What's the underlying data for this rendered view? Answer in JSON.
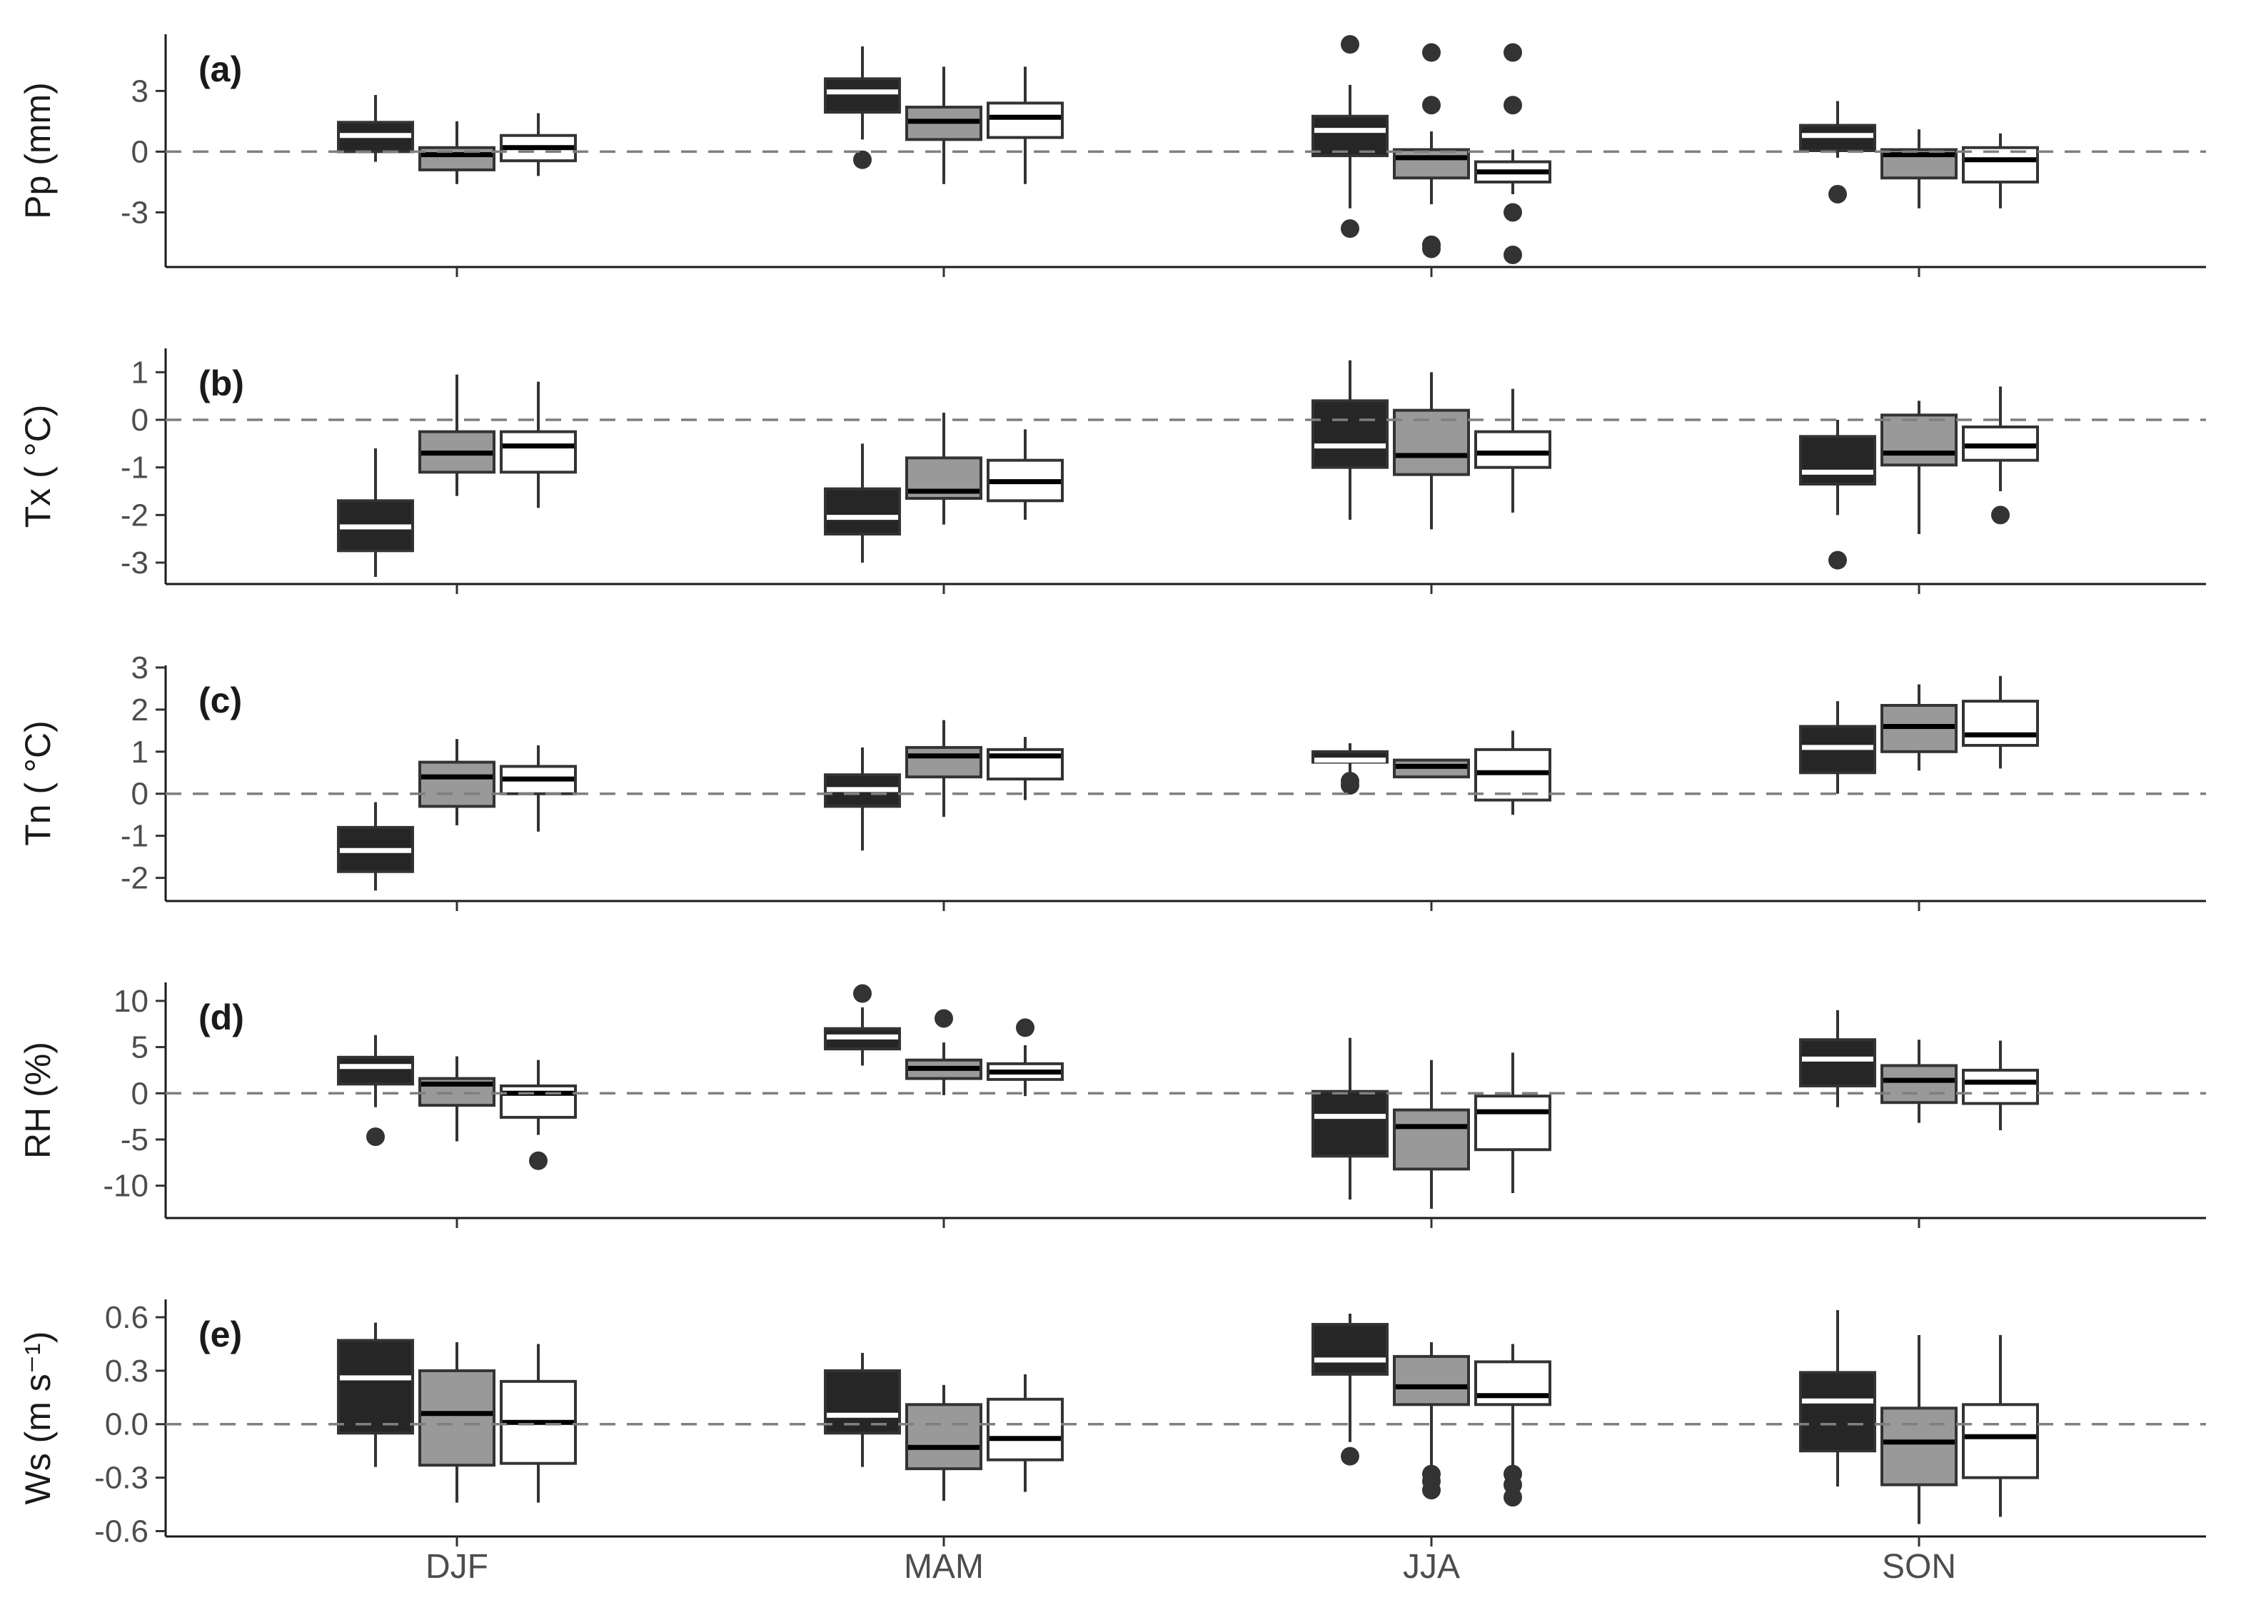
{
  "chart_data": {
    "type": "boxplot",
    "categories": [
      "DJF",
      "MAM",
      "JJA",
      "SON"
    ],
    "group_fills": [
      "#262626",
      "#999999",
      "#ffffff"
    ],
    "median_colors": [
      "#ffffff",
      "#000000",
      "#000000"
    ],
    "reference_line": 0,
    "grid": false,
    "legend": "none",
    "panels": [
      {
        "tag": "(a)",
        "ylabel": "Pp (mm)",
        "ylim": [
          -5.7,
          5.8
        ],
        "yticks": [
          -3,
          0,
          3
        ],
        "ytick_labels": [
          "-3",
          "0",
          "3"
        ],
        "boxes": [
          [
            {
              "min": -0.5,
              "q1": 0,
              "median": 0.8,
              "q3": 1.45,
              "max": 2.8,
              "outliers": []
            },
            {
              "min": -1.6,
              "q1": -0.9,
              "median": -0.15,
              "q3": 0.2,
              "max": 1.5,
              "outliers": []
            },
            {
              "min": -1.2,
              "q1": -0.45,
              "median": 0.2,
              "q3": 0.8,
              "max": 1.9,
              "outliers": []
            }
          ],
          [
            {
              "min": 0.6,
              "q1": 1.95,
              "median": 2.95,
              "q3": 3.6,
              "max": 5.2,
              "outliers": [
                -0.4
              ]
            },
            {
              "min": -1.6,
              "q1": 0.6,
              "median": 1.5,
              "q3": 2.2,
              "max": 4.2,
              "outliers": []
            },
            {
              "min": -1.6,
              "q1": 0.7,
              "median": 1.7,
              "q3": 2.4,
              "max": 4.2,
              "outliers": []
            }
          ],
          [
            {
              "min": -2.8,
              "q1": -0.2,
              "median": 1.05,
              "q3": 1.75,
              "max": 3.3,
              "outliers": [
                5.3,
                -3.8
              ]
            },
            {
              "min": -2.6,
              "q1": -1.3,
              "median": -0.3,
              "q3": 0.1,
              "max": 1.0,
              "outliers": [
                4.9,
                2.3,
                -4.6,
                -4.8
              ]
            },
            {
              "min": -2.1,
              "q1": -1.5,
              "median": -1.0,
              "q3": -0.5,
              "max": 0.1,
              "outliers": [
                4.9,
                2.3,
                -3.0,
                -5.1
              ]
            }
          ],
          [
            {
              "min": -0.3,
              "q1": 0.05,
              "median": 0.8,
              "q3": 1.3,
              "max": 2.5,
              "outliers": [
                -2.1
              ]
            },
            {
              "min": -2.8,
              "q1": -1.3,
              "median": -0.15,
              "q3": 0.1,
              "max": 1.1,
              "outliers": []
            },
            {
              "min": -2.8,
              "q1": -1.5,
              "median": -0.4,
              "q3": 0.2,
              "max": 0.9,
              "outliers": []
            }
          ]
        ]
      },
      {
        "tag": "(b)",
        "ylabel": "Tx ( °C)",
        "ylim": [
          -3.45,
          1.5
        ],
        "yticks": [
          -3,
          -2,
          -1,
          0,
          1
        ],
        "ytick_labels": [
          "-3",
          "-2",
          "-1",
          "0",
          "1"
        ],
        "boxes": [
          [
            {
              "min": -3.3,
              "q1": -2.75,
              "median": -2.25,
              "q3": -1.7,
              "max": -0.6,
              "outliers": []
            },
            {
              "min": -1.6,
              "q1": -1.1,
              "median": -0.7,
              "q3": -0.25,
              "max": 0.95,
              "outliers": []
            },
            {
              "min": -1.85,
              "q1": -1.1,
              "median": -0.55,
              "q3": -0.25,
              "max": 0.8,
              "outliers": []
            }
          ],
          [
            {
              "min": -3.0,
              "q1": -2.4,
              "median": -2.05,
              "q3": -1.45,
              "max": -0.5,
              "outliers": []
            },
            {
              "min": -2.2,
              "q1": -1.65,
              "median": -1.5,
              "q3": -0.8,
              "max": 0.15,
              "outliers": []
            },
            {
              "min": -2.1,
              "q1": -1.7,
              "median": -1.3,
              "q3": -0.85,
              "max": -0.2,
              "outliers": []
            }
          ],
          [
            {
              "min": -2.1,
              "q1": -1.0,
              "median": -0.55,
              "q3": 0.4,
              "max": 1.25,
              "outliers": []
            },
            {
              "min": -2.3,
              "q1": -1.15,
              "median": -0.75,
              "q3": 0.2,
              "max": 1.0,
              "outliers": []
            },
            {
              "min": -1.95,
              "q1": -1.0,
              "median": -0.7,
              "q3": -0.25,
              "max": 0.65,
              "outliers": []
            }
          ],
          [
            {
              "min": -2.0,
              "q1": -1.35,
              "median": -1.1,
              "q3": -0.35,
              "max": 0.0,
              "outliers": [
                -2.95
              ]
            },
            {
              "min": -2.4,
              "q1": -0.95,
              "median": -0.7,
              "q3": 0.1,
              "max": 0.4,
              "outliers": []
            },
            {
              "min": -1.5,
              "q1": -0.85,
              "median": -0.55,
              "q3": -0.15,
              "max": 0.7,
              "outliers": [
                -2.0
              ]
            }
          ]
        ]
      },
      {
        "tag": "(c)",
        "ylabel": "Tn ( °C)",
        "ylim": [
          -2.55,
          3.05
        ],
        "yticks": [
          -2,
          -1,
          0,
          1,
          2,
          3
        ],
        "ytick_labels": [
          "-2",
          "-1",
          "0",
          "1",
          "2",
          "3"
        ],
        "boxes": [
          [
            {
              "min": -2.3,
              "q1": -1.85,
              "median": -1.35,
              "q3": -0.8,
              "max": -0.2,
              "outliers": []
            },
            {
              "min": -0.75,
              "q1": -0.3,
              "median": 0.4,
              "q3": 0.75,
              "max": 1.3,
              "outliers": []
            },
            {
              "min": -0.9,
              "q1": 0.0,
              "median": 0.35,
              "q3": 0.65,
              "max": 1.15,
              "outliers": []
            }
          ],
          [
            {
              "min": -1.35,
              "q1": -0.3,
              "median": 0.1,
              "q3": 0.45,
              "max": 1.1,
              "outliers": []
            },
            {
              "min": -0.55,
              "q1": 0.4,
              "median": 0.9,
              "q3": 1.1,
              "max": 1.75,
              "outliers": []
            },
            {
              "min": -0.15,
              "q1": 0.35,
              "median": 0.9,
              "q3": 1.05,
              "max": 1.35,
              "outliers": []
            }
          ],
          [
            {
              "min": 0.4,
              "q1": 0.75,
              "median": 0.8,
              "q3": 1.0,
              "max": 1.2,
              "outliers": [
                0.3,
                0.2
              ]
            },
            {
              "min": 0.4,
              "q1": 0.4,
              "median": 0.65,
              "q3": 0.8,
              "max": 0.8,
              "outliers": []
            },
            {
              "min": -0.5,
              "q1": -0.15,
              "median": 0.5,
              "q3": 1.05,
              "max": 1.5,
              "outliers": []
            }
          ],
          [
            {
              "min": 0.0,
              "q1": 0.5,
              "median": 1.1,
              "q3": 1.6,
              "max": 2.2,
              "outliers": []
            },
            {
              "min": 0.55,
              "q1": 1.0,
              "median": 1.6,
              "q3": 2.1,
              "max": 2.6,
              "outliers": []
            },
            {
              "min": 0.6,
              "q1": 1.15,
              "median": 1.4,
              "q3": 2.2,
              "max": 2.8,
              "outliers": []
            }
          ]
        ]
      },
      {
        "tag": "(d)",
        "ylabel": "RH (%)",
        "ylim": [
          -13.5,
          12.0
        ],
        "yticks": [
          -10,
          -5,
          0,
          5,
          10
        ],
        "ytick_labels": [
          "-10",
          "-5",
          "0",
          "5",
          "10"
        ],
        "boxes": [
          [
            {
              "min": -1.5,
              "q1": 1.0,
              "median": 2.9,
              "q3": 3.9,
              "max": 6.3,
              "outliers": [
                -4.7
              ]
            },
            {
              "min": -5.2,
              "q1": -1.3,
              "median": 1.0,
              "q3": 1.6,
              "max": 4.0,
              "outliers": []
            },
            {
              "min": -4.5,
              "q1": -2.6,
              "median": 0.0,
              "q3": 0.8,
              "max": 3.6,
              "outliers": [
                -7.3
              ]
            }
          ],
          [
            {
              "min": 3.0,
              "q1": 4.8,
              "median": 6.1,
              "q3": 7.0,
              "max": 9.3,
              "outliers": [
                10.8
              ]
            },
            {
              "min": -0.2,
              "q1": 1.6,
              "median": 2.7,
              "q3": 3.6,
              "max": 5.5,
              "outliers": [
                8.1
              ]
            },
            {
              "min": -0.3,
              "q1": 1.5,
              "median": 2.3,
              "q3": 3.2,
              "max": 5.2,
              "outliers": [
                7.1
              ]
            }
          ],
          [
            {
              "min": -11.5,
              "q1": -6.8,
              "median": -2.5,
              "q3": 0.2,
              "max": 6.0,
              "outliers": []
            },
            {
              "min": -12.5,
              "q1": -8.2,
              "median": -3.6,
              "q3": -1.8,
              "max": 3.6,
              "outliers": []
            },
            {
              "min": -10.8,
              "q1": -6.1,
              "median": -2.0,
              "q3": -0.3,
              "max": 4.4,
              "outliers": []
            }
          ],
          [
            {
              "min": -1.5,
              "q1": 0.8,
              "median": 3.7,
              "q3": 5.8,
              "max": 9.0,
              "outliers": []
            },
            {
              "min": -3.2,
              "q1": -1.0,
              "median": 1.4,
              "q3": 3.0,
              "max": 5.8,
              "outliers": []
            },
            {
              "min": -4.0,
              "q1": -1.1,
              "median": 1.2,
              "q3": 2.5,
              "max": 5.7,
              "outliers": []
            }
          ]
        ]
      },
      {
        "tag": "(e)",
        "ylabel": "Ws (m s⁻¹)",
        "ylim": [
          -0.63,
          0.7
        ],
        "yticks": [
          -0.6,
          -0.3,
          0.0,
          0.3,
          0.6
        ],
        "ytick_labels": [
          "-0.6",
          "-0.3",
          "0.0",
          "0.3",
          "0.6"
        ],
        "boxes": [
          [
            {
              "min": -0.24,
              "q1": -0.05,
              "median": 0.26,
              "q3": 0.47,
              "max": 0.57,
              "outliers": []
            },
            {
              "min": -0.44,
              "q1": -0.23,
              "median": 0.06,
              "q3": 0.3,
              "max": 0.46,
              "outliers": []
            },
            {
              "min": -0.44,
              "q1": -0.22,
              "median": 0.01,
              "q3": 0.24,
              "max": 0.45,
              "outliers": []
            }
          ],
          [
            {
              "min": -0.24,
              "q1": -0.05,
              "median": 0.05,
              "q3": 0.3,
              "max": 0.4,
              "outliers": []
            },
            {
              "min": -0.43,
              "q1": -0.25,
              "median": -0.13,
              "q3": 0.11,
              "max": 0.22,
              "outliers": []
            },
            {
              "min": -0.38,
              "q1": -0.2,
              "median": -0.08,
              "q3": 0.14,
              "max": 0.28,
              "outliers": []
            }
          ],
          [
            {
              "min": -0.1,
              "q1": 0.28,
              "median": 0.36,
              "q3": 0.56,
              "max": 0.62,
              "outliers": [
                -0.18
              ]
            },
            {
              "min": -0.24,
              "q1": 0.11,
              "median": 0.21,
              "q3": 0.38,
              "max": 0.46,
              "outliers": [
                -0.28,
                -0.32,
                -0.37
              ]
            },
            {
              "min": -0.24,
              "q1": 0.11,
              "median": 0.16,
              "q3": 0.35,
              "max": 0.45,
              "outliers": [
                -0.28,
                -0.34,
                -0.41
              ]
            }
          ],
          [
            {
              "min": -0.35,
              "q1": -0.15,
              "median": 0.13,
              "q3": 0.29,
              "max": 0.64,
              "outliers": []
            },
            {
              "min": -0.56,
              "q1": -0.34,
              "median": -0.1,
              "q3": 0.09,
              "max": 0.5,
              "outliers": []
            },
            {
              "min": -0.52,
              "q1": -0.3,
              "median": -0.07,
              "q3": 0.11,
              "max": 0.5,
              "outliers": []
            }
          ]
        ]
      }
    ]
  }
}
